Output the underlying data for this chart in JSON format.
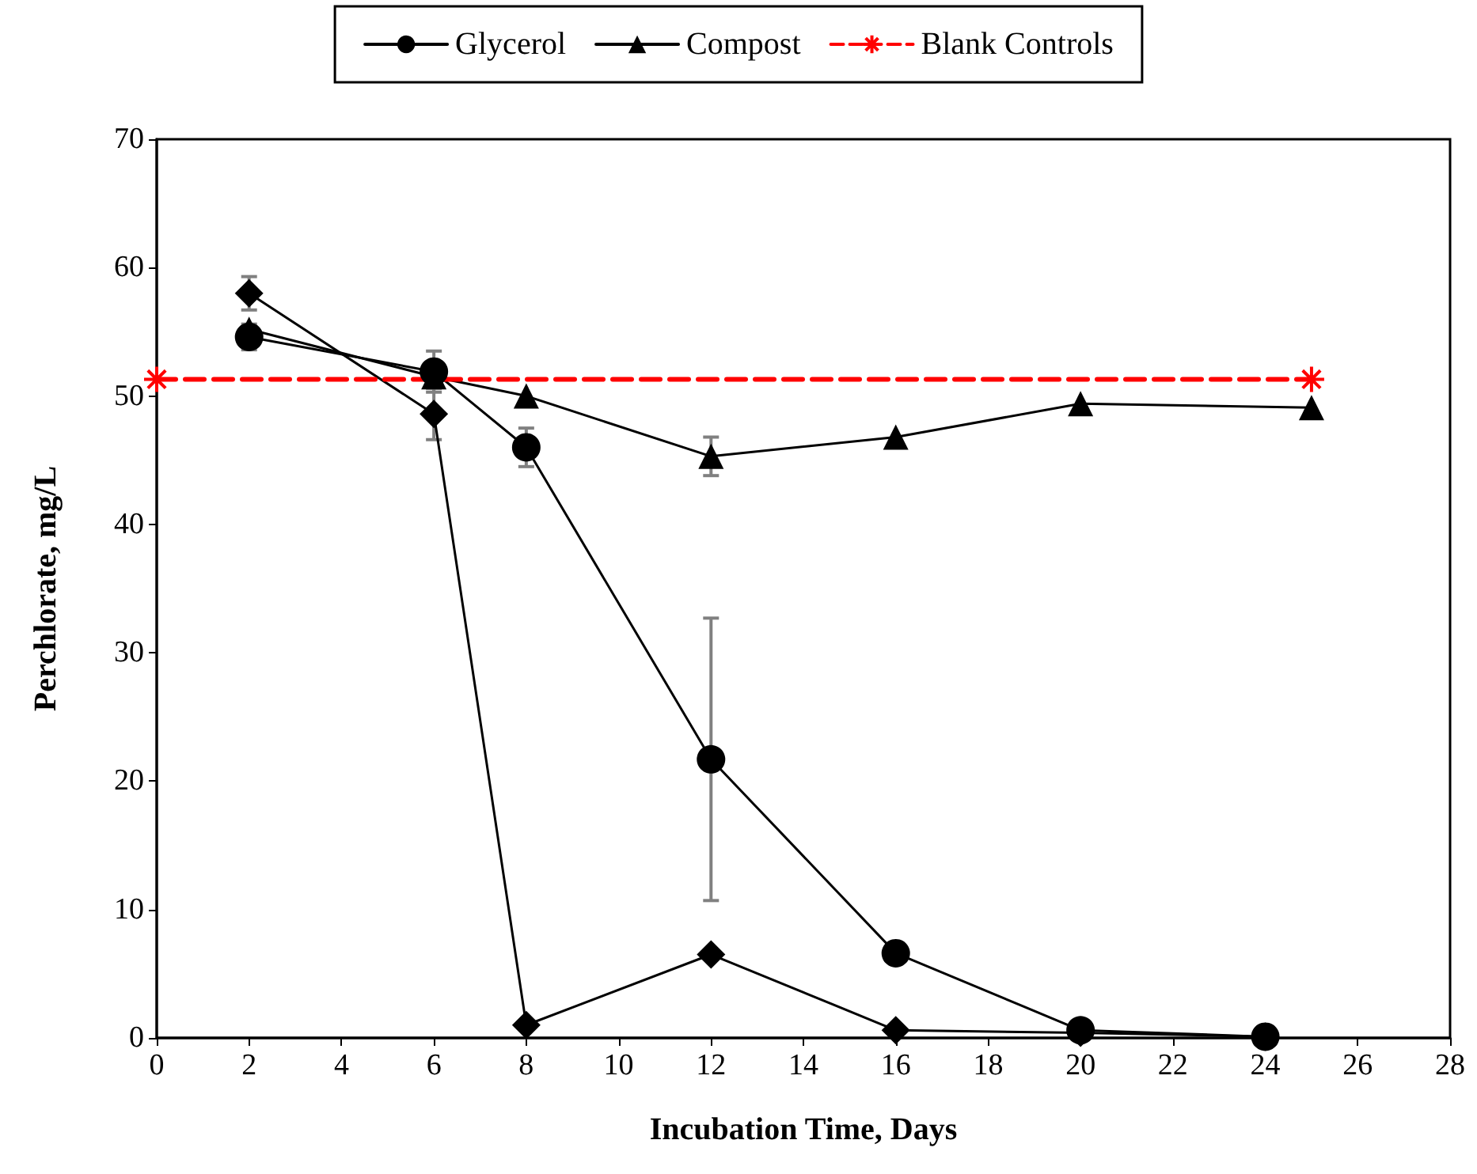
{
  "chart_data": {
    "type": "line",
    "xlabel": "Incubation Time, Days",
    "ylabel": "Perchlorate, mg/L",
    "xlim": [
      0,
      28
    ],
    "xticks": [
      0,
      2,
      4,
      6,
      8,
      10,
      12,
      14,
      16,
      18,
      20,
      22,
      24,
      26,
      28
    ],
    "ylim": [
      0,
      70
    ],
    "yticks": [
      0,
      10,
      20,
      30,
      40,
      50,
      60,
      70
    ],
    "grid": false,
    "legend": "top",
    "series": [
      {
        "color": "#000000",
        "marker": "diamond",
        "x": [
          2,
          6,
          8,
          12,
          16,
          20,
          24
        ],
        "values": [
          58,
          48.6,
          1.0,
          6.5,
          0.6,
          0.4,
          0.1
        ],
        "errors": [
          1.3,
          2,
          null,
          null,
          null,
          null,
          null
        ]
      },
      {
        "name": "Glycerol",
        "color": "#000000",
        "marker": "circle",
        "x": [
          2,
          6,
          8,
          12,
          16,
          20,
          24
        ],
        "values": [
          54.6,
          51.9,
          46.0,
          21.7,
          6.6,
          0.6,
          0.1
        ],
        "errors": [
          1,
          1.6,
          1.5,
          11,
          null,
          null,
          null
        ]
      },
      {
        "name": "Compost",
        "color": "#000000",
        "marker": "triangle",
        "x": [
          2,
          6,
          8,
          12,
          16,
          20,
          25
        ],
        "values": [
          55.2,
          51.5,
          50.0,
          45.3,
          46.8,
          49.4,
          49.1
        ],
        "errors": [
          null,
          null,
          null,
          1.5,
          null,
          null,
          null
        ]
      },
      {
        "name": "Blank Controls",
        "color": "#ff0000",
        "marker": "cross",
        "line_style": "dashed",
        "x": [
          0,
          25
        ],
        "values": [
          51.3,
          51.3
        ]
      }
    ]
  }
}
